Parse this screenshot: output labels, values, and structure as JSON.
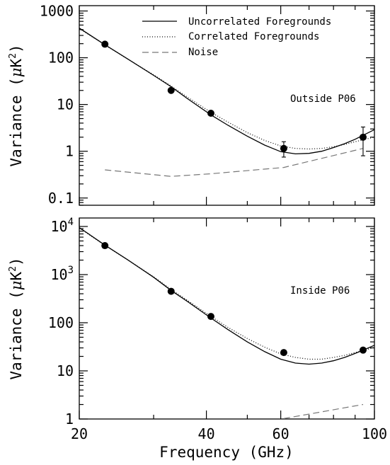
{
  "chart_data": {
    "type": "line",
    "xlabel": "Frequency (GHz)",
    "x_scale": "log",
    "xlim": [
      20,
      100
    ],
    "x_ticks": [
      {
        "value": 20,
        "label": "20"
      },
      {
        "value": 40,
        "label": "40"
      },
      {
        "value": 60,
        "label": "60"
      },
      {
        "value": 100,
        "label": "100"
      }
    ],
    "legend": {
      "position": "top-right",
      "entries": [
        {
          "label": "Uncorrelated Foregrounds",
          "style": "solid"
        },
        {
          "label": "Correlated Foregrounds",
          "style": "dotted"
        },
        {
          "label": "Noise",
          "style": "dashed"
        }
      ]
    },
    "panels": [
      {
        "annotation": "Outside P06",
        "ylabel_main": "Variance (",
        "ylabel_mu": "μ",
        "ylabel_unit": "K",
        "ylabel_sup": "2",
        "ylabel_close": ")",
        "y_scale": "log",
        "ylim": [
          0.07,
          1300
        ],
        "y_ticks": [
          {
            "value": 0.1,
            "label": "0.1"
          },
          {
            "value": 1,
            "label": "1"
          },
          {
            "value": 10,
            "label": "10"
          },
          {
            "value": 100,
            "label": "100"
          },
          {
            "value": 1000,
            "label": "1000"
          }
        ],
        "series": [
          {
            "name": "Uncorrelated Foregrounds",
            "style": "solid",
            "x": [
              20,
              23,
              26,
              30,
              33,
              36,
              41,
              45,
              50,
              55,
              60,
              65,
              70,
              75,
              80,
              85,
              90,
              95,
              100
            ],
            "y": [
              430,
              190,
              95,
              42,
              24,
              13.5,
              6.0,
              3.6,
              2.1,
              1.35,
              0.98,
              0.88,
              0.9,
              1.0,
              1.2,
              1.45,
              1.8,
              2.3,
              2.9
            ]
          },
          {
            "name": "Correlated Foregrounds",
            "style": "dotted",
            "x": [
              20,
              23,
              26,
              30,
              33,
              36,
              41,
              45,
              50,
              55,
              60,
              65,
              70,
              75,
              80,
              85,
              90,
              95,
              100
            ],
            "y": [
              420,
              188,
              95,
              43,
              25,
              14.5,
              6.8,
              4.2,
              2.5,
              1.7,
              1.3,
              1.15,
              1.12,
              1.15,
              1.25,
              1.4,
              1.6,
              1.8,
              2.0
            ]
          },
          {
            "name": "Noise",
            "style": "dashed",
            "x": [
              23,
              33,
              41,
              61,
              94
            ],
            "y": [
              0.4,
              0.29,
              0.33,
              0.45,
              1.15
            ]
          }
        ],
        "points": {
          "x": [
            23,
            33,
            41,
            61,
            94
          ],
          "y": [
            195,
            20,
            6.5,
            1.15,
            2.0
          ],
          "err_low": [
            null,
            null,
            null,
            0.75,
            0.8
          ],
          "err_high": [
            null,
            null,
            null,
            1.6,
            3.3
          ]
        }
      },
      {
        "annotation": "Inside P06",
        "ylabel_main": "Variance (",
        "ylabel_mu": "μ",
        "ylabel_unit": "K",
        "ylabel_sup": "2",
        "ylabel_close": ")",
        "y_scale": "log",
        "ylim": [
          1,
          15000
        ],
        "y_ticks": [
          {
            "value": 1,
            "label": "1"
          },
          {
            "value": 10,
            "label": "10"
          },
          {
            "value": 100,
            "label": "100"
          },
          {
            "value": 1000,
            "label": "10",
            "sup": "3"
          },
          {
            "value": 10000,
            "label": "10",
            "sup": "4"
          }
        ],
        "series": [
          {
            "name": "Uncorrelated Foregrounds",
            "style": "solid",
            "x": [
              20,
              23,
              26,
              30,
              33,
              36,
              41,
              45,
              50,
              55,
              60,
              65,
              70,
              75,
              80,
              85,
              90,
              95,
              100
            ],
            "y": [
              9500,
              4100,
              2050,
              880,
              470,
              280,
              125,
              72,
              40,
              25,
              17.5,
              14.5,
              13.8,
              14.5,
              16.2,
              19,
              23,
              28,
              34
            ]
          },
          {
            "name": "Correlated Foregrounds",
            "style": "dotted",
            "x": [
              20,
              23,
              26,
              30,
              33,
              36,
              41,
              45,
              50,
              55,
              60,
              65,
              70,
              75,
              80,
              85,
              90,
              95,
              100
            ],
            "y": [
              9300,
              4050,
              2050,
              900,
              490,
              295,
              135,
              80,
              47,
              31,
              22.5,
              19,
              17.5,
              17.5,
              19,
              21,
              24,
              27,
              31
            ]
          },
          {
            "name": "Noise",
            "style": "dashed",
            "x": [
              61,
              94
            ],
            "y": [
              1.02,
              2.0
            ]
          }
        ],
        "points": {
          "x": [
            23,
            33,
            41,
            61,
            94
          ],
          "y": [
            4000,
            450,
            135,
            24,
            27
          ],
          "err_low": [
            null,
            null,
            null,
            null,
            null
          ],
          "err_high": [
            null,
            null,
            null,
            null,
            null
          ]
        }
      }
    ]
  }
}
